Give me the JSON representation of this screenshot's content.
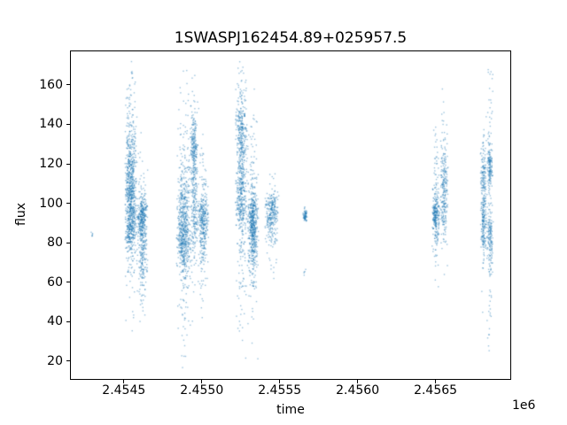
{
  "figure": {
    "background": "#ffffff"
  },
  "chart_data": {
    "type": "scatter",
    "title": "1SWASPJ162454.89+025957.5",
    "xlabel": "time",
    "ylabel": "flux",
    "x_offset_label": "1e6",
    "xlim": [
      2454160,
      2456980
    ],
    "ylim": [
      11,
      177
    ],
    "xticks": [
      2454500,
      2455000,
      2455500,
      2456000,
      2456500
    ],
    "xtick_labels": [
      "2.4545",
      "2.4550",
      "2.4555",
      "2.4560",
      "2.4565"
    ],
    "yticks": [
      20,
      40,
      60,
      80,
      100,
      120,
      140,
      160
    ],
    "ytick_labels": [
      "20",
      "40",
      "60",
      "80",
      "100",
      "120",
      "140",
      "160"
    ],
    "grid": false,
    "legend": null,
    "point_color": "#1f77b4",
    "point_alpha": 0.45,
    "point_size": 1.4,
    "clusters": [
      {
        "name": "isolated-left",
        "n": 7,
        "t_range": [
          2454288,
          2454308
        ],
        "bands": [
          {
            "frac": 1,
            "mean": 84,
            "sd": 1.2
          }
        ],
        "flux_clip": [
          81,
          87
        ]
      },
      {
        "name": "group1a",
        "n": 950,
        "t_range": [
          2454505,
          2454585
        ],
        "bands": [
          {
            "frac": 0.32,
            "mean": 112,
            "sd": 11
          },
          {
            "frac": 0.34,
            "mean": 90,
            "sd": 8
          },
          {
            "frac": 0.2,
            "mean": 100,
            "sd": 28
          },
          {
            "frac": 0.14,
            "mean": 130,
            "sd": 22
          }
        ],
        "flux_clip": [
          33,
          172
        ]
      },
      {
        "name": "group1b",
        "n": 520,
        "t_range": [
          2454583,
          2454655
        ],
        "bands": [
          {
            "frac": 0.5,
            "mean": 93,
            "sd": 5
          },
          {
            "frac": 0.28,
            "mean": 74,
            "sd": 9
          },
          {
            "frac": 0.22,
            "mean": 85,
            "sd": 20
          }
        ],
        "flux_clip": [
          38,
          142
        ]
      },
      {
        "name": "group2a",
        "n": 750,
        "t_range": [
          2454835,
          2454935
        ],
        "bands": [
          {
            "frac": 0.45,
            "mean": 82,
            "sd": 8
          },
          {
            "frac": 0.2,
            "mean": 100,
            "sd": 12
          },
          {
            "frac": 0.35,
            "mean": 90,
            "sd": 32
          }
        ],
        "flux_clip": [
          13,
          172
        ]
      },
      {
        "name": "group2b",
        "n": 420,
        "t_range": [
          2454925,
          2454975
        ],
        "bands": [
          {
            "frac": 0.45,
            "mean": 127,
            "sd": 10
          },
          {
            "frac": 0.3,
            "mean": 95,
            "sd": 10
          },
          {
            "frac": 0.25,
            "mean": 110,
            "sd": 28
          }
        ],
        "flux_clip": [
          35,
          172
        ]
      },
      {
        "name": "group2c",
        "n": 380,
        "t_range": [
          2454970,
          2455045
        ],
        "bands": [
          {
            "frac": 0.55,
            "mean": 92,
            "sd": 6
          },
          {
            "frac": 0.45,
            "mean": 86,
            "sd": 18
          }
        ],
        "flux_clip": [
          28,
          150
        ]
      },
      {
        "name": "group3a",
        "n": 720,
        "t_range": [
          2455215,
          2455295
        ],
        "bands": [
          {
            "frac": 0.38,
            "mean": 136,
            "sd": 11
          },
          {
            "frac": 0.34,
            "mean": 102,
            "sd": 10
          },
          {
            "frac": 0.28,
            "mean": 105,
            "sd": 33
          }
        ],
        "flux_clip": [
          18,
          172
        ]
      },
      {
        "name": "group3b",
        "n": 620,
        "t_range": [
          2455290,
          2455365
        ],
        "bands": [
          {
            "frac": 0.5,
            "mean": 92,
            "sd": 7
          },
          {
            "frac": 0.26,
            "mean": 80,
            "sd": 10
          },
          {
            "frac": 0.24,
            "mean": 95,
            "sd": 26
          }
        ],
        "flux_clip": [
          18,
          160
        ]
      },
      {
        "name": "group3c",
        "n": 300,
        "t_range": [
          2455405,
          2455495
        ],
        "bands": [
          {
            "frac": 0.65,
            "mean": 95,
            "sd": 5
          },
          {
            "frac": 0.35,
            "mean": 90,
            "sd": 11
          }
        ],
        "flux_clip": [
          58,
          122
        ]
      },
      {
        "name": "small-mid",
        "n": 70,
        "t_range": [
          2455648,
          2455678
        ],
        "bands": [
          {
            "frac": 1,
            "mean": 94,
            "sd": 1.6
          }
        ],
        "flux_clip": [
          89,
          99
        ]
      },
      {
        "name": "small-mid-low",
        "n": 5,
        "t_range": [
          2455652,
          2455668
        ],
        "bands": [
          {
            "frac": 1,
            "mean": 65,
            "sd": 0.8
          }
        ],
        "flux_clip": [
          62,
          68
        ]
      },
      {
        "name": "group4a",
        "n": 300,
        "t_range": [
          2456478,
          2456528
        ],
        "bands": [
          {
            "frac": 0.6,
            "mean": 93,
            "sd": 5
          },
          {
            "frac": 0.4,
            "mean": 97,
            "sd": 18
          }
        ],
        "flux_clip": [
          55,
          140
        ]
      },
      {
        "name": "group4b",
        "n": 260,
        "t_range": [
          2456528,
          2456582
        ],
        "bands": [
          {
            "frac": 0.5,
            "mean": 112,
            "sd": 8
          },
          {
            "frac": 0.3,
            "mean": 95,
            "sd": 8
          },
          {
            "frac": 0.2,
            "mean": 110,
            "sd": 25
          }
        ],
        "flux_clip": [
          50,
          160
        ]
      },
      {
        "name": "group5a",
        "n": 320,
        "t_range": [
          2456788,
          2456828
        ],
        "bands": [
          {
            "frac": 0.45,
            "mean": 88,
            "sd": 8
          },
          {
            "frac": 0.35,
            "mean": 112,
            "sd": 9
          },
          {
            "frac": 0.2,
            "mean": 100,
            "sd": 28
          }
        ],
        "flux_clip": [
          35,
          150
        ]
      },
      {
        "name": "group5b",
        "n": 360,
        "t_range": [
          2456828,
          2456872
        ],
        "bands": [
          {
            "frac": 0.4,
            "mean": 118,
            "sd": 6
          },
          {
            "frac": 0.3,
            "mean": 82,
            "sd": 7
          },
          {
            "frac": 0.3,
            "mean": 100,
            "sd": 35
          }
        ],
        "flux_clip": [
          15,
          170
        ]
      }
    ]
  }
}
